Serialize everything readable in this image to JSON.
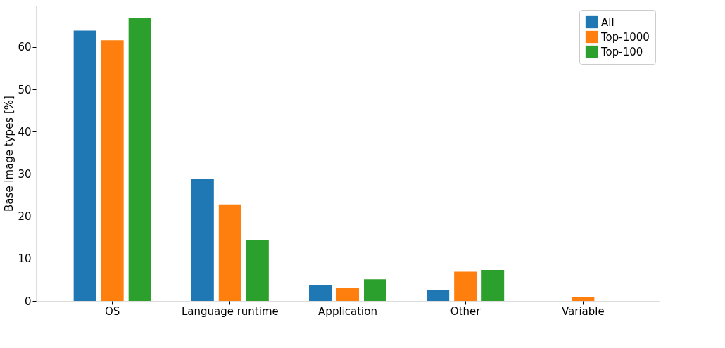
{
  "chart_data": {
    "type": "bar",
    "ylabel": "Base image types [%]",
    "categories": [
      "OS",
      "Language runtime",
      "Application",
      "Other",
      "Variable"
    ],
    "series": [
      {
        "name": "All",
        "color": "#1f77b4",
        "values": [
          63.9,
          28.8,
          3.7,
          2.5,
          0
        ]
      },
      {
        "name": "Top-1000",
        "color": "#ff7f0e",
        "values": [
          61.6,
          22.8,
          3.1,
          6.9,
          0.9
        ]
      },
      {
        "name": "Top-100",
        "color": "#2ca02c",
        "values": [
          66.8,
          14.3,
          5.1,
          7.3,
          0
        ]
      }
    ],
    "ylim": [
      0,
      69.8
    ],
    "yticks": [
      0,
      10,
      20,
      30,
      40,
      50,
      60
    ],
    "grid": false,
    "legend": "top right"
  }
}
